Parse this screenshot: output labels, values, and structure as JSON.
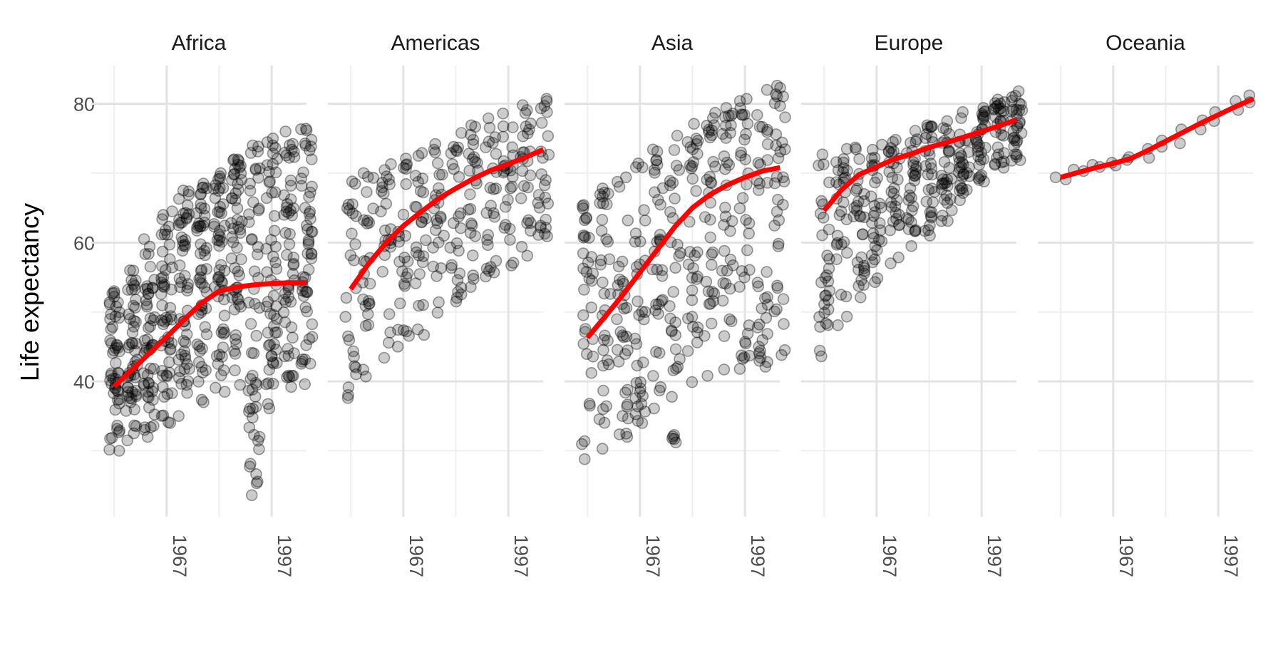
{
  "chart_data": {
    "type": "scatter",
    "ylabel": "Life expectancy",
    "xlabel": "",
    "title": "",
    "x_ticks": [
      1967,
      1997
    ],
    "y_ticks": [
      40,
      60,
      80
    ],
    "xlim": [
      1948.5,
      2010
    ],
    "ylim": [
      20.5,
      85.5
    ],
    "grid": true,
    "facets": [
      {
        "name": "Africa",
        "ranges": [
          [
            1952,
            30,
            53,
            52
          ],
          [
            1957,
            31.5,
            56,
            52
          ],
          [
            1962,
            32,
            60.5,
            52
          ],
          [
            1967,
            34,
            64.5,
            52
          ],
          [
            1972,
            35,
            67.5,
            52
          ],
          [
            1977,
            37,
            68.5,
            52
          ],
          [
            1982,
            38.5,
            70,
            52
          ],
          [
            1987,
            39.5,
            72,
            52
          ],
          [
            1992,
            23.6,
            74,
            52
          ],
          [
            1997,
            36.1,
            75,
            52
          ],
          [
            2002,
            39.2,
            76,
            52
          ],
          [
            2007,
            39.6,
            76.4,
            52
          ]
        ],
        "trend": [
          [
            1952,
            39.3
          ],
          [
            1957,
            41.6
          ],
          [
            1962,
            44.0
          ],
          [
            1967,
            46.4
          ],
          [
            1972,
            48.9
          ],
          [
            1977,
            51.3
          ],
          [
            1982,
            53.0
          ],
          [
            1987,
            53.6
          ],
          [
            1992,
            53.9
          ],
          [
            1997,
            54.1
          ],
          [
            2002,
            54.2
          ],
          [
            2007,
            54.2
          ]
        ]
      },
      {
        "name": "Americas",
        "ranges": [
          [
            1952,
            37.6,
            68.8,
            25
          ],
          [
            1957,
            40.7,
            70.0,
            25
          ],
          [
            1962,
            43.4,
            71.3,
            25
          ],
          [
            1967,
            45.0,
            72.1,
            25
          ],
          [
            1972,
            46.7,
            72.9,
            25
          ],
          [
            1977,
            49.9,
            74.2,
            25
          ],
          [
            1982,
            51.5,
            75.8,
            25
          ],
          [
            1987,
            53.6,
            76.9,
            25
          ],
          [
            1992,
            55.1,
            77.9,
            25
          ],
          [
            1997,
            56.7,
            78.6,
            25
          ],
          [
            2002,
            58.1,
            79.8,
            25
          ],
          [
            2007,
            60.9,
            80.7,
            25
          ]
        ],
        "trend": [
          [
            1952,
            53.3
          ],
          [
            1957,
            56.9
          ],
          [
            1962,
            59.9
          ],
          [
            1967,
            62.4
          ],
          [
            1972,
            64.4
          ],
          [
            1977,
            66.3
          ],
          [
            1982,
            67.8
          ],
          [
            1987,
            69.2
          ],
          [
            1992,
            70.4
          ],
          [
            1997,
            71.3
          ],
          [
            2002,
            72.3
          ],
          [
            2007,
            73.4
          ]
        ]
      },
      {
        "name": "Asia",
        "ranges": [
          [
            1952,
            28.8,
            65.4,
            33
          ],
          [
            1957,
            30.3,
            67.8,
            33
          ],
          [
            1962,
            32.0,
            69.4,
            33
          ],
          [
            1967,
            34.0,
            71.4,
            33
          ],
          [
            1972,
            36.1,
            73.4,
            33
          ],
          [
            1977,
            31.2,
            75.4,
            33
          ],
          [
            1982,
            39.9,
            77.1,
            33
          ],
          [
            1987,
            40.8,
            78.7,
            33
          ],
          [
            1992,
            41.7,
            79.4,
            33
          ],
          [
            1997,
            41.8,
            80.7,
            33
          ],
          [
            2002,
            42.1,
            82.0,
            33
          ],
          [
            2007,
            43.8,
            82.6,
            33
          ]
        ],
        "trend": [
          [
            1952,
            46.3
          ],
          [
            1957,
            49.3
          ],
          [
            1962,
            52.4
          ],
          [
            1967,
            55.7
          ],
          [
            1972,
            59.0
          ],
          [
            1977,
            62.3
          ],
          [
            1982,
            65.0
          ],
          [
            1987,
            66.9
          ],
          [
            1992,
            68.3
          ],
          [
            1997,
            69.4
          ],
          [
            2002,
            70.3
          ],
          [
            2007,
            70.8
          ]
        ]
      },
      {
        "name": "Europe",
        "ranges": [
          [
            1952,
            43.6,
            72.7,
            30
          ],
          [
            1957,
            48.1,
            73.5,
            30
          ],
          [
            1962,
            52.1,
            73.7,
            30
          ],
          [
            1967,
            54.3,
            74.1,
            30
          ],
          [
            1972,
            57.0,
            74.8,
            30
          ],
          [
            1977,
            59.5,
            76.1,
            30
          ],
          [
            1982,
            61.0,
            76.9,
            30
          ],
          [
            1987,
            63.1,
            77.5,
            30
          ],
          [
            1992,
            66.1,
            78.8,
            30
          ],
          [
            1997,
            68.8,
            79.4,
            30
          ],
          [
            2002,
            70.8,
            80.6,
            30
          ],
          [
            2007,
            71.8,
            81.8,
            30
          ]
        ],
        "trend": [
          [
            1952,
            64.6
          ],
          [
            1957,
            67.6
          ],
          [
            1962,
            69.8
          ],
          [
            1967,
            70.9
          ],
          [
            1972,
            72.0
          ],
          [
            1977,
            72.8
          ],
          [
            1982,
            73.7
          ],
          [
            1987,
            74.4
          ],
          [
            1992,
            75.2
          ],
          [
            1997,
            76.0
          ],
          [
            2002,
            76.8
          ],
          [
            2007,
            77.7
          ]
        ]
      },
      {
        "name": "Oceania",
        "ranges": [
          [
            1952,
            69.1,
            69.4,
            2
          ],
          [
            1957,
            70.3,
            70.5,
            2
          ],
          [
            1962,
            70.9,
            71.2,
            2
          ],
          [
            1967,
            71.1,
            71.5,
            2
          ],
          [
            1972,
            71.9,
            72.3,
            2
          ],
          [
            1977,
            72.2,
            73.5,
            2
          ],
          [
            1982,
            73.8,
            74.7,
            2
          ],
          [
            1987,
            74.3,
            76.3,
            2
          ],
          [
            1992,
            76.3,
            77.6,
            2
          ],
          [
            1997,
            77.5,
            78.8,
            2
          ],
          [
            2002,
            79.1,
            80.4,
            2
          ],
          [
            2007,
            80.2,
            81.2,
            2
          ]
        ],
        "trend": [
          [
            1952,
            69.4
          ],
          [
            1957,
            70.1
          ],
          [
            1962,
            70.8
          ],
          [
            1967,
            71.4
          ],
          [
            1972,
            72.1
          ],
          [
            1977,
            73.3
          ],
          [
            1982,
            74.6
          ],
          [
            1987,
            75.9
          ],
          [
            1992,
            77.2
          ],
          [
            1997,
            78.4
          ],
          [
            2002,
            79.6
          ],
          [
            2007,
            80.7
          ]
        ]
      }
    ]
  },
  "colors": {
    "trend": "#ff0000",
    "point_fill": "rgba(0,0,0,0.20)",
    "point_stroke": "rgba(0,0,0,0.38)",
    "grid_major": "#e3e3e3",
    "grid_minor": "#efefef"
  }
}
